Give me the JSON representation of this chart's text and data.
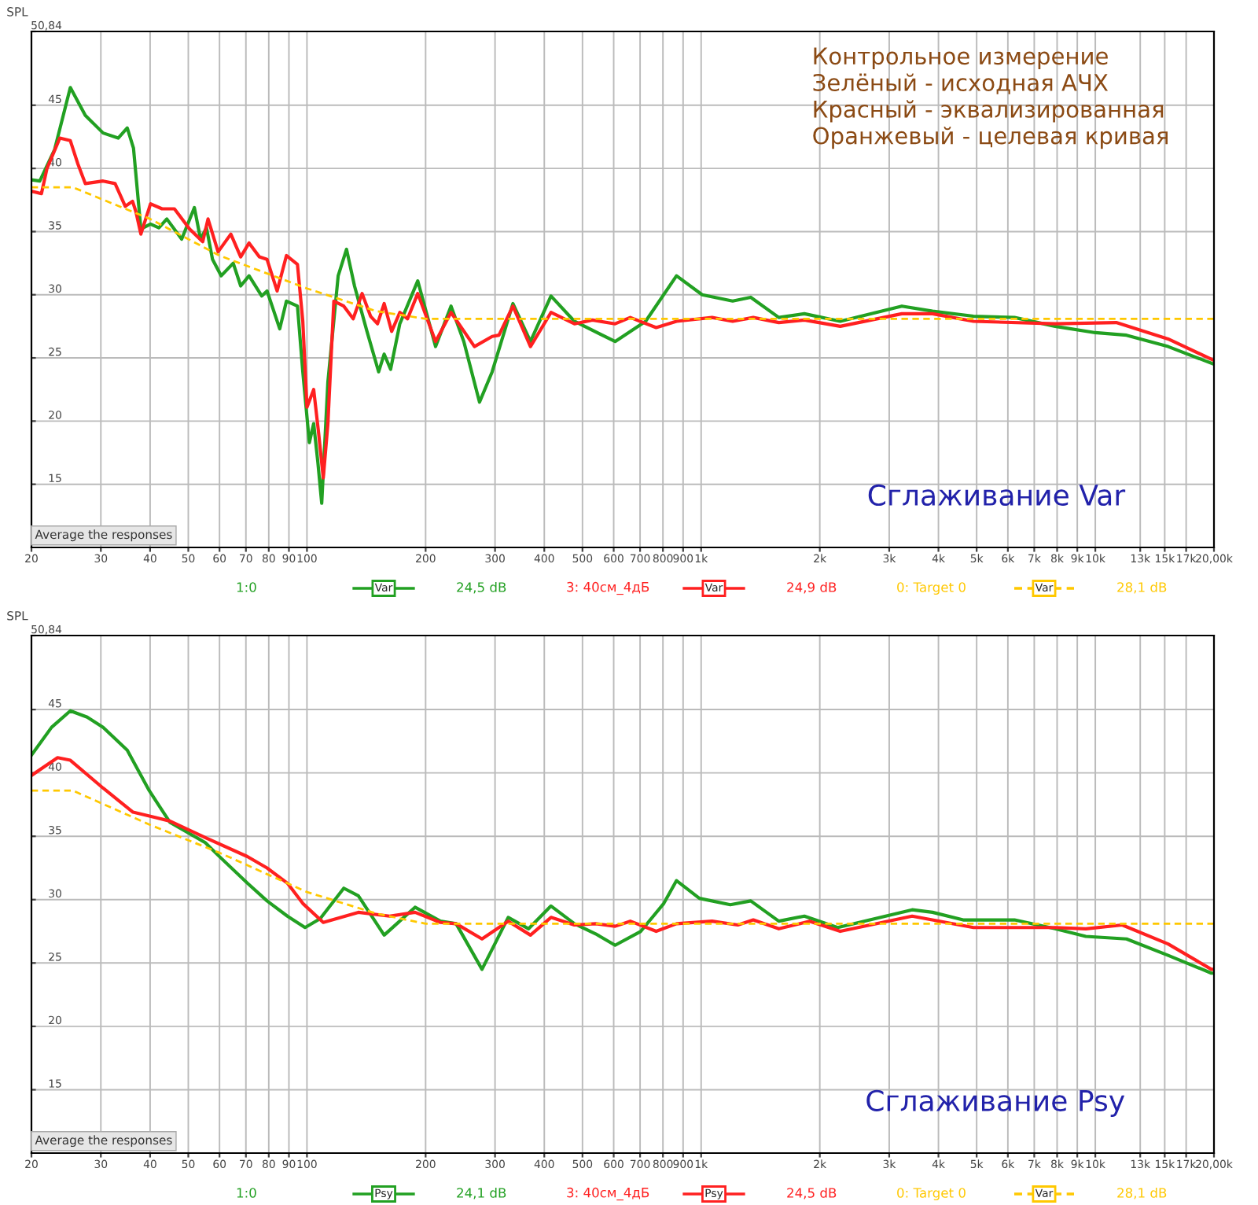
{
  "chart_data": [
    {
      "type": "line",
      "title": "Сглаживание Var",
      "subtitle": "Контрольное измерение\nЗелёный - исходная АЧХ\nКрасный - эквализированная\nОранжевый - целевая кривая",
      "ylabel": "SPL",
      "log": "x",
      "grid": true,
      "legend": "bottom",
      "xlim": [
        20,
        20000
      ],
      "ylim": [
        10,
        50.84
      ],
      "xticks": [
        20,
        30,
        40,
        50,
        60,
        70,
        80,
        90,
        100,
        200,
        300,
        400,
        500,
        600,
        700,
        800,
        900,
        {
          "value": 1000,
          "label": "1k"
        },
        {
          "value": 2000,
          "label": "2k"
        },
        {
          "value": 3000,
          "label": "3k"
        },
        {
          "value": 4000,
          "label": "4k"
        },
        {
          "value": 5000,
          "label": "5k"
        },
        {
          "value": 6000,
          "label": "6k"
        },
        {
          "value": 7000,
          "label": "7k"
        },
        {
          "value": 8000,
          "label": "8k"
        },
        {
          "value": 9000,
          "label": "9k"
        },
        {
          "value": 10000,
          "label": "10k"
        },
        {
          "value": 13000,
          "label": "13k"
        },
        {
          "value": 15000,
          "label": "15k"
        },
        {
          "value": 17000,
          "label": "17k"
        },
        {
          "value": 20000,
          "label": "20,00k"
        }
      ],
      "yticks": [
        15,
        20,
        25,
        30,
        35,
        40,
        45,
        {
          "value": 50.84,
          "label": "50,84"
        }
      ],
      "annotations": [
        "Average the responses",
        "Var",
        "24,5 dB",
        "Var",
        "24,9 dB",
        "Var",
        "28,1 dB"
      ],
      "series": [
        {
          "name": "1:0",
          "color": "#22a022",
          "line_style": "solid",
          "x": [
            20,
            21,
            22.9,
            25.1,
            27.4,
            30.4,
            33.2,
            35,
            36.3,
            37.9,
            40.1,
            42.1,
            44.1,
            48.1,
            51.8,
            53.7,
            55.6,
            57.6,
            60.6,
            65,
            67.9,
            71.3,
            76.8,
            79.2,
            85.3,
            88.7,
            94.6,
            97.6,
            101.4,
            104,
            106.6,
            109,
            113,
            120,
            126,
            132,
            142,
            152,
            157,
            163,
            172,
            191,
            212,
            232,
            250,
            274,
            295,
            333,
            369,
            416,
            477,
            605,
            723,
            866,
            1006,
            1202,
            1336,
            1574,
            1828,
            2254,
            3230,
            3864,
            4909,
            6236,
            7910,
            10000,
            12000,
            15300,
            20000
          ],
          "values": [
            39.1,
            39.0,
            41.5,
            46.4,
            44.2,
            42.8,
            42.4,
            43.2,
            41.6,
            35.2,
            35.6,
            35.3,
            36.0,
            34.4,
            36.9,
            34.4,
            35.3,
            32.8,
            31.5,
            32.5,
            30.7,
            31.5,
            29.9,
            30.3,
            27.3,
            29.5,
            29.1,
            23.9,
            18.3,
            19.8,
            16.7,
            13.5,
            23.1,
            31.5,
            33.6,
            30.7,
            27.1,
            23.9,
            25.3,
            24.1,
            27.7,
            31.1,
            25.9,
            29.1,
            26.3,
            21.5,
            23.9,
            29.3,
            26.3,
            29.9,
            27.9,
            26.3,
            27.9,
            31.5,
            30.0,
            29.5,
            29.8,
            28.2,
            28.5,
            27.9,
            29.1,
            28.7,
            28.3,
            28.2,
            27.5,
            27.0,
            26.8,
            25.9,
            24.5
          ]
        },
        {
          "name": "3: 40см_4дБ",
          "color": "#ff2020",
          "line_style": "solid",
          "x": [
            20,
            21.2,
            21.9,
            23.6,
            25.1,
            26.2,
            27.4,
            30.4,
            32.6,
            34.6,
            36.1,
            36.8,
            37.9,
            40.1,
            42.9,
            46.1,
            50.4,
            54.4,
            56.1,
            59.5,
            64.1,
            67.9,
            71.3,
            75.7,
            79.2,
            84,
            88.7,
            94.6,
            97.6,
            100,
            104,
            107,
            110,
            113,
            117,
            124,
            131,
            138,
            145,
            151,
            157,
            164,
            172,
            180,
            191,
            212,
            232,
            266,
            295,
            307,
            333,
            369,
            416,
            477,
            530,
            605,
            661,
            769,
            866,
            1066,
            1202,
            1356,
            1574,
            1828,
            2254,
            3230,
            3864,
            4909,
            7910,
            11300,
            15300,
            20000
          ],
          "values": [
            38.2,
            38.0,
            40.0,
            42.4,
            42.2,
            40.4,
            38.8,
            39.0,
            38.8,
            37.0,
            37.4,
            36.6,
            34.8,
            37.2,
            36.8,
            36.8,
            35.2,
            34.2,
            36.0,
            33.4,
            34.8,
            33.0,
            34.1,
            33.0,
            32.8,
            30.3,
            33.1,
            32.4,
            27.9,
            21.1,
            22.5,
            19.1,
            15.5,
            19.8,
            29.5,
            29.1,
            28.1,
            30.1,
            28.3,
            27.7,
            29.3,
            27.1,
            28.6,
            28.1,
            30.1,
            26.3,
            28.6,
            25.9,
            26.7,
            26.8,
            29.1,
            25.9,
            28.6,
            27.7,
            28.0,
            27.7,
            28.2,
            27.4,
            27.9,
            28.2,
            27.9,
            28.2,
            27.8,
            28.0,
            27.5,
            28.5,
            28.5,
            27.9,
            27.7,
            27.8,
            26.5,
            24.8
          ]
        },
        {
          "name": "0: Target 0",
          "color": "#ffc800",
          "line_style": "dashed",
          "x": [
            20,
            25.5,
            40,
            60,
            100,
            150,
            200,
            20000
          ],
          "values": [
            38.5,
            38.5,
            36.0,
            33.1,
            30.5,
            28.7,
            28.1,
            28.1
          ]
        }
      ]
    },
    {
      "type": "line",
      "title": "Сглаживание Psy",
      "ylabel": "SPL",
      "log": "x",
      "grid": true,
      "legend": "bottom",
      "xlim": [
        20,
        20000
      ],
      "ylim": [
        10,
        50.84
      ],
      "xticks": [
        20,
        30,
        40,
        50,
        60,
        70,
        80,
        90,
        100,
        200,
        300,
        400,
        500,
        600,
        700,
        800,
        900,
        {
          "value": 1000,
          "label": "1k"
        },
        {
          "value": 2000,
          "label": "2k"
        },
        {
          "value": 3000,
          "label": "3k"
        },
        {
          "value": 4000,
          "label": "4k"
        },
        {
          "value": 5000,
          "label": "5k"
        },
        {
          "value": 6000,
          "label": "6k"
        },
        {
          "value": 7000,
          "label": "7k"
        },
        {
          "value": 8000,
          "label": "8k"
        },
        {
          "value": 9000,
          "label": "9k"
        },
        {
          "value": 10000,
          "label": "10k"
        },
        {
          "value": 13000,
          "label": "13k"
        },
        {
          "value": 15000,
          "label": "15k"
        },
        {
          "value": 17000,
          "label": "17k"
        },
        {
          "value": 20000,
          "label": "20,00k"
        }
      ],
      "yticks": [
        15,
        20,
        25,
        30,
        35,
        40,
        45,
        {
          "value": 50.84,
          "label": "50,84"
        }
      ],
      "annotations": [
        "Average the responses",
        "Psy",
        "24,1 dB",
        "Psy",
        "24,5 dB",
        "Var",
        "28,1 dB"
      ],
      "series": [
        {
          "name": "1:0",
          "color": "#22a022",
          "line_style": "solid",
          "x": [
            20,
            22.5,
            25.1,
            27.7,
            30.4,
            35,
            39.8,
            44.9,
            55.2,
            59.5,
            70.6,
            79.2,
            89.2,
            98.9,
            108,
            124,
            135,
            157,
            188,
            218,
            239,
            278,
            324,
            365,
            416,
            477,
            540,
            605,
            703,
            804,
            866,
            990,
            1186,
            1336,
            1574,
            1828,
            2220,
            3430,
            3864,
            4620,
            6236,
            7910,
            9460,
            12000,
            15300,
            19700,
            20000
          ],
          "values": [
            41.4,
            43.6,
            44.9,
            44.4,
            43.6,
            41.8,
            38.6,
            36.1,
            34.5,
            33.5,
            31.3,
            29.9,
            28.7,
            27.8,
            28.5,
            30.9,
            30.3,
            27.2,
            29.4,
            28.3,
            28.1,
            24.5,
            28.6,
            27.7,
            29.5,
            28.1,
            27.3,
            26.4,
            27.5,
            29.7,
            31.5,
            30.1,
            29.6,
            29.9,
            28.3,
            28.7,
            27.8,
            29.2,
            29.0,
            28.4,
            28.4,
            27.7,
            27.1,
            26.9,
            25.6,
            24.2,
            24.2
          ]
        },
        {
          "name": "3: 40см_4дБ",
          "color": "#ff2020",
          "line_style": "solid",
          "x": [
            20,
            23.3,
            25.1,
            30.4,
            36.2,
            41,
            44.9,
            55.2,
            70.6,
            79.2,
            89.2,
            97.6,
            110,
            135,
            162,
            188,
            218,
            239,
            278,
            324,
            369,
            416,
            477,
            540,
            605,
            661,
            769,
            866,
            1066,
            1239,
            1356,
            1574,
            1884,
            2254,
            3430,
            4909,
            7910,
            9460,
            11700,
            15300,
            19700,
            20000
          ],
          "values": [
            39.8,
            41.2,
            41.0,
            38.8,
            36.9,
            36.5,
            36.2,
            34.9,
            33.4,
            32.5,
            31.3,
            29.7,
            28.2,
            29.0,
            28.7,
            29.0,
            28.2,
            28.1,
            26.9,
            28.3,
            27.2,
            28.6,
            28.0,
            28.1,
            27.9,
            28.3,
            27.5,
            28.1,
            28.3,
            28.0,
            28.4,
            27.7,
            28.3,
            27.5,
            28.7,
            27.8,
            27.8,
            27.7,
            28.0,
            26.5,
            24.5,
            24.5
          ]
        },
        {
          "name": "0: Target 0",
          "color": "#ffc800",
          "line_style": "dashed",
          "x": [
            20,
            25.5,
            40,
            60,
            100,
            150,
            200,
            20000
          ],
          "values": [
            38.6,
            38.6,
            35.9,
            33.7,
            30.6,
            28.9,
            28.1,
            28.1
          ]
        }
      ]
    }
  ]
}
